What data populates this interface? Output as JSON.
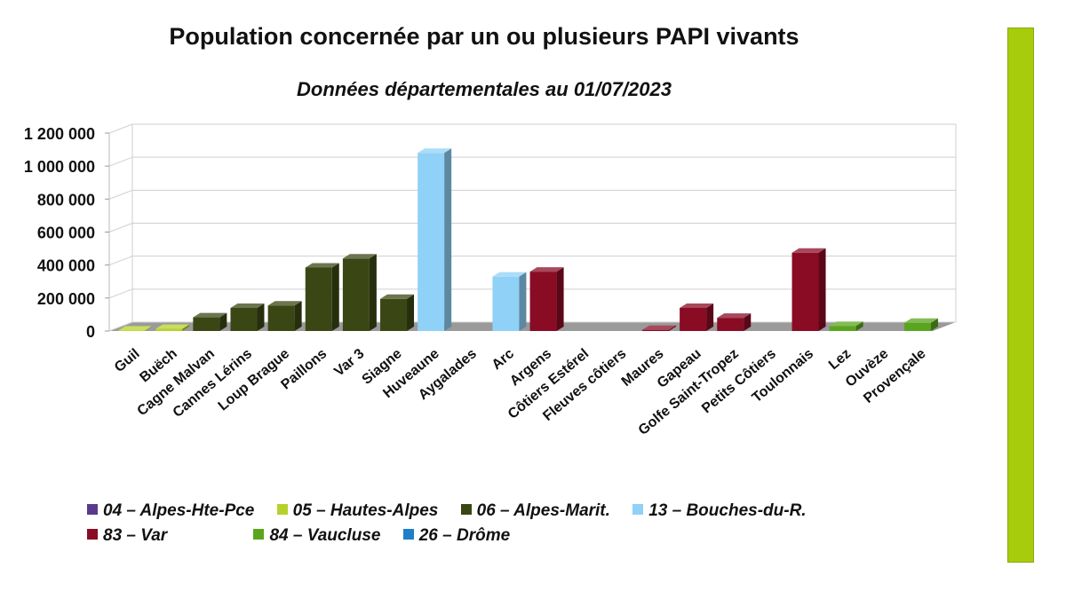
{
  "chart_data": {
    "type": "bar",
    "title": "Population concernée par un ou plusieurs PAPI vivants",
    "subtitle": "Données départementales au 01/07/2023",
    "ylim": [
      0,
      1200000
    ],
    "yticks": [
      "0",
      "200 000",
      "400 000",
      "600 000",
      "800 000",
      "1 000 000",
      "1 200 000"
    ],
    "grid": true,
    "legend_position": "bottom",
    "categories": [
      {
        "label": "Guil",
        "value": 3000,
        "series": 1
      },
      {
        "label": "Buëch",
        "value": 13000,
        "series": 1
      },
      {
        "label": "Cagne Malvan",
        "value": 83000,
        "series": 2
      },
      {
        "label": "Cannes Lérins",
        "value": 140000,
        "series": 2
      },
      {
        "label": "Loup Brague",
        "value": 155000,
        "series": 2
      },
      {
        "label": "Paillons",
        "value": 385000,
        "series": 2
      },
      {
        "label": "Var 3",
        "value": 440000,
        "series": 2
      },
      {
        "label": "Siagne",
        "value": 195000,
        "series": 2
      },
      {
        "label": "Huveaune",
        "value": 1080000,
        "series": 3
      },
      {
        "label": "Aygalades",
        "value": 0,
        "series": 3
      },
      {
        "label": "Arc",
        "value": 330000,
        "series": 3
      },
      {
        "label": "Argens",
        "value": 360000,
        "series": 4
      },
      {
        "label": "Côtiers Estérel",
        "value": 0,
        "series": 4
      },
      {
        "label": "Fleuves côtiers",
        "value": 0,
        "series": 4
      },
      {
        "label": "Maures",
        "value": 7000,
        "series": 4
      },
      {
        "label": "Gapeau",
        "value": 140000,
        "series": 4
      },
      {
        "label": "Golfe Saint-Tropez",
        "value": 80000,
        "series": 4
      },
      {
        "label": "Petits Côtiers",
        "value": 0,
        "series": 4
      },
      {
        "label": "Toulonnais",
        "value": 475000,
        "series": 4
      },
      {
        "label": "Lez",
        "value": 30000,
        "series": 5
      },
      {
        "label": "Ouvèze",
        "value": 0,
        "series": 5
      },
      {
        "label": "Provençale",
        "value": 50000,
        "series": 5
      }
    ],
    "series": [
      {
        "name": "04 – Alpes-Hte-Pce",
        "color": "#5b3a8e"
      },
      {
        "name": "05 – Hautes-Alpes",
        "color": "#b8d12a"
      },
      {
        "name": "06 – Alpes-Marit.",
        "color": "#3a4714"
      },
      {
        "name": "13 –  Bouches-du-R.",
        "color": "#8fd1f7"
      },
      {
        "name": "83 –  Var",
        "color": "#8a0b24"
      },
      {
        "name": "84 –  Vaucluse",
        "color": "#5aa51e"
      },
      {
        "name": "26  –  Drôme",
        "color": "#1f7ec8"
      }
    ]
  },
  "decor": {
    "accent_bar_color": "#a6cc0b"
  }
}
